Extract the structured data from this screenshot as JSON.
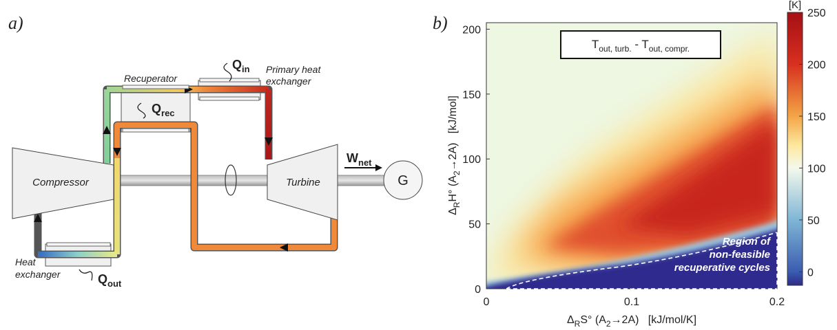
{
  "diagram": {
    "panel_label": "a)",
    "compressor": "Compressor",
    "turbine": "Turbine",
    "generator": "G",
    "recuperator": "Recuperator",
    "primary_heat_exchanger": [
      "Primary heat",
      "exchanger"
    ],
    "heat_exchanger": [
      "Heat",
      "exchanger"
    ],
    "q_in": [
      "Q",
      "in"
    ],
    "q_rec": [
      "Q",
      "rec"
    ],
    "q_out": [
      "Q",
      "out"
    ],
    "w_net": [
      "W",
      "net"
    ]
  },
  "chart_data": {
    "type": "heatmap",
    "panel_label": "b)",
    "title": [
      "T",
      "out, turb.",
      " - T",
      "out, compr."
    ],
    "xlabel": [
      "Δ",
      "R",
      "S° (A",
      "2",
      "→2A)   [kJ/mol/K]"
    ],
    "ylabel": [
      "Δ",
      "R",
      "H° (A",
      "2",
      "→2A)   [kJ/mol]"
    ],
    "xlim": [
      0,
      0.2
    ],
    "xticks": [
      0,
      0.1,
      0.2
    ],
    "ylim": [
      0,
      205
    ],
    "yticks": [
      0,
      50,
      100,
      150,
      200
    ],
    "colorbar": {
      "label": "[K]",
      "lim": [
        -13,
        250
      ],
      "ticks": [
        0,
        50,
        100,
        150,
        200,
        250
      ]
    },
    "annotation": [
      "Region of",
      "non-feasible",
      "recuperative cycles"
    ]
  }
}
